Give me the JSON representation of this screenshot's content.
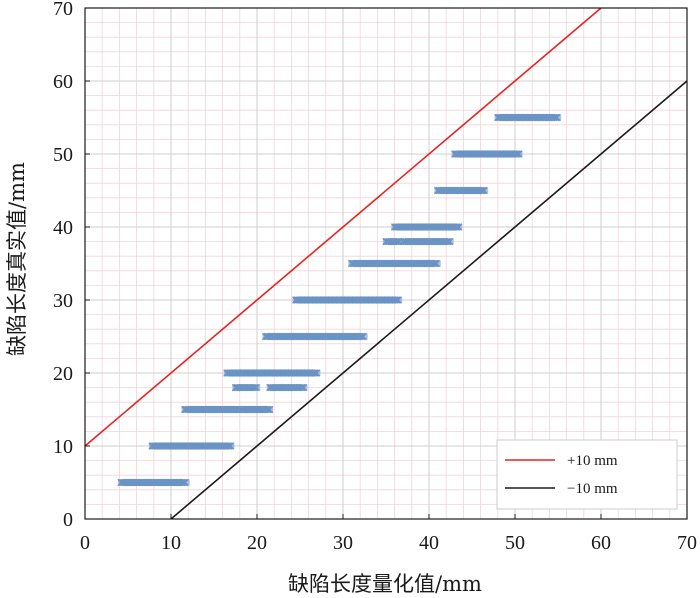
{
  "chart_data": {
    "type": "scatter",
    "title": "",
    "xlabel": "缺陷长度量化值/mm",
    "ylabel": "缺陷长度真实值/mm",
    "xlim": [
      0,
      70
    ],
    "ylim": [
      0,
      70
    ],
    "xticks": [
      0,
      10,
      20,
      30,
      40,
      50,
      60,
      70
    ],
    "yticks": [
      0,
      10,
      20,
      30,
      40,
      50,
      60,
      70
    ],
    "grid": true,
    "minor_grid": true,
    "legend_position": "bottom-right",
    "marker_color": "#6a93c6",
    "marker": "x",
    "clusters": [
      {
        "y": 5,
        "x_range": [
          4.2,
          11.8
        ]
      },
      {
        "y": 10,
        "x_range": [
          7.8,
          17.0
        ]
      },
      {
        "y": 15,
        "x_range": [
          11.6,
          21.5
        ]
      },
      {
        "y": 18,
        "x_range": [
          17.5,
          20.0
        ]
      },
      {
        "y": 18,
        "x_range": [
          21.5,
          25.5
        ]
      },
      {
        "y": 20,
        "x_range": [
          16.5,
          27.0
        ]
      },
      {
        "y": 25,
        "x_range": [
          21.0,
          32.5
        ]
      },
      {
        "y": 30,
        "x_range": [
          24.5,
          36.5
        ]
      },
      {
        "y": 35,
        "x_range": [
          31.0,
          41.0
        ]
      },
      {
        "y": 38,
        "x_range": [
          35.0,
          36.5
        ]
      },
      {
        "y": 38,
        "x_range": [
          37.0,
          42.5
        ]
      },
      {
        "y": 40,
        "x_range": [
          36.0,
          43.5
        ]
      },
      {
        "y": 45,
        "x_range": [
          41.0,
          46.5
        ]
      },
      {
        "y": 50,
        "x_range": [
          43.0,
          50.5
        ]
      },
      {
        "y": 55,
        "x_range": [
          48.0,
          55.0
        ]
      }
    ],
    "series": [
      {
        "name": "+10 mm",
        "type": "line",
        "color": "#e8231f",
        "x": [
          0,
          60
        ],
        "y": [
          10,
          70
        ]
      },
      {
        "name": "−10 mm",
        "type": "line",
        "color": "#1a1a1a",
        "x": [
          10,
          70
        ],
        "y": [
          0,
          60
        ]
      }
    ]
  }
}
